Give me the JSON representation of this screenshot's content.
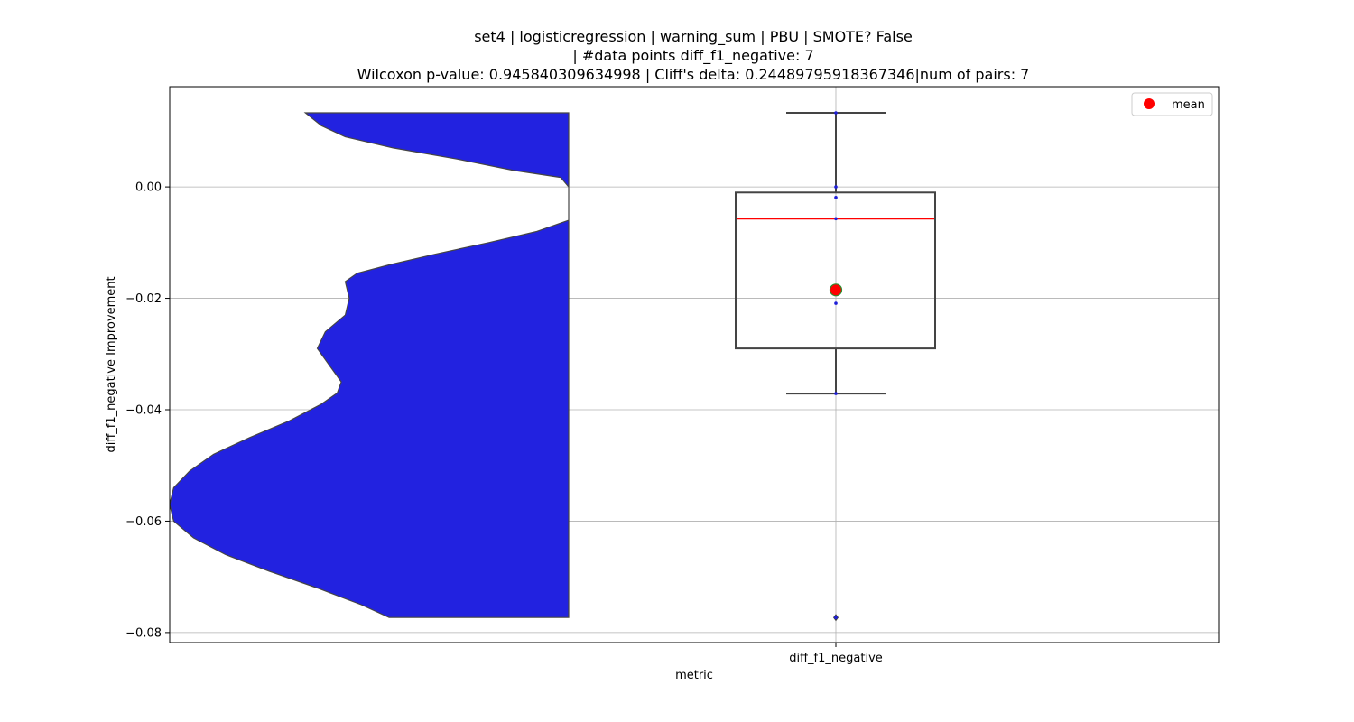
{
  "chart_data": {
    "type": "violin+box",
    "title_lines": [
      "set4 | logisticregression | warning_sum | PBU | SMOTE? False",
      "| #data points diff_f1_negative: 7",
      "Wilcoxon p-value: 0.945840309634998 | Cliff's delta: 0.24489795918367346|num of pairs: 7"
    ],
    "xlabel": "metric",
    "ylabel": "diff_f1_negative Improvement",
    "categories": [
      "diff_f1_negative"
    ],
    "ylim": [
      -0.0818,
      0.018
    ],
    "yticks": [
      0.0,
      -0.02,
      -0.04,
      -0.06,
      -0.08
    ],
    "ytick_labels": [
      "0.00",
      "−0.02",
      "−0.04",
      "−0.06",
      "−0.08"
    ],
    "grid": true,
    "legend": {
      "position": "top-right",
      "entries": [
        {
          "label": "mean",
          "color": "#ff0000",
          "marker": "circle"
        }
      ]
    },
    "points": [
      0.0133,
      0.0,
      -0.0019,
      -0.0057,
      -0.0209,
      -0.0371,
      -0.0773
    ],
    "box": {
      "q1": -0.029,
      "median": -0.0057,
      "q3": -0.001,
      "whisker_low": -0.0371,
      "whisker_high": 0.0133,
      "outliers": [
        -0.0773
      ],
      "mean": -0.0185
    },
    "violin": {
      "color": "#2222e0",
      "edge_color": "#444444",
      "profile": [
        [
          0.0133,
          0.34
        ],
        [
          0.011,
          0.38
        ],
        [
          0.009,
          0.44
        ],
        [
          0.007,
          0.56
        ],
        [
          0.005,
          0.72
        ],
        [
          0.003,
          0.86
        ],
        [
          0.0017,
          0.98
        ],
        [
          0.0,
          1.0
        ],
        [
          -0.006,
          1.0
        ],
        [
          -0.008,
          0.92
        ],
        [
          -0.01,
          0.8
        ],
        [
          -0.012,
          0.67
        ],
        [
          -0.014,
          0.55
        ],
        [
          -0.0155,
          0.47
        ],
        [
          -0.017,
          0.44
        ],
        [
          -0.02,
          0.45
        ],
        [
          -0.023,
          0.44
        ],
        [
          -0.026,
          0.39
        ],
        [
          -0.029,
          0.37
        ],
        [
          -0.032,
          0.4
        ],
        [
          -0.035,
          0.43
        ],
        [
          -0.037,
          0.42
        ],
        [
          -0.039,
          0.38
        ],
        [
          -0.042,
          0.3
        ],
        [
          -0.045,
          0.2
        ],
        [
          -0.048,
          0.11
        ],
        [
          -0.051,
          0.05
        ],
        [
          -0.054,
          0.01
        ],
        [
          -0.057,
          0.0
        ],
        [
          -0.06,
          0.01
        ],
        [
          -0.063,
          0.06
        ],
        [
          -0.066,
          0.14
        ],
        [
          -0.069,
          0.25
        ],
        [
          -0.072,
          0.37
        ],
        [
          -0.075,
          0.48
        ],
        [
          -0.0773,
          0.55
        ]
      ]
    }
  }
}
